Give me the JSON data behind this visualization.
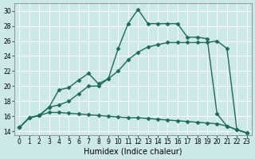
{
  "title": "",
  "xlabel": "Humidex (Indice chaleur)",
  "ylabel": "",
  "bg_color": "#cce8e8",
  "line_color": "#1a6b5a",
  "grid_color": "#ffffff",
  "xlim": [
    -0.5,
    23.5
  ],
  "ylim": [
    13.5,
    31
  ],
  "xticks": [
    0,
    1,
    2,
    3,
    4,
    5,
    6,
    7,
    8,
    9,
    10,
    11,
    12,
    13,
    14,
    15,
    16,
    17,
    18,
    19,
    20,
    21,
    22,
    23
  ],
  "yticks": [
    14,
    16,
    18,
    20,
    22,
    24,
    26,
    28,
    30
  ],
  "line1_x": [
    0,
    1,
    2,
    3,
    4,
    5,
    6,
    7,
    8,
    9,
    10,
    11,
    12,
    13,
    14,
    15,
    16,
    17,
    18,
    19,
    20,
    21,
    22,
    23
  ],
  "line1_y": [
    14.5,
    15.8,
    16.1,
    16.5,
    16.5,
    16.4,
    16.3,
    16.2,
    16.1,
    16.0,
    15.9,
    15.8,
    15.8,
    15.7,
    15.6,
    15.5,
    15.4,
    15.3,
    15.2,
    15.1,
    15.0,
    14.7,
    14.2,
    13.8
  ],
  "line2_x": [
    0,
    1,
    2,
    3,
    4,
    5,
    6,
    7,
    8,
    9,
    10,
    11,
    12,
    13,
    14,
    15,
    16,
    17,
    18,
    19,
    20,
    21,
    22,
    23
  ],
  "line2_y": [
    14.5,
    15.8,
    16.1,
    17.2,
    17.5,
    18.0,
    19.0,
    20.0,
    20.0,
    21.0,
    22.0,
    23.5,
    24.5,
    25.2,
    25.5,
    25.8,
    25.8,
    25.8,
    25.8,
    25.8,
    26.0,
    25.0,
    14.2,
    13.8
  ],
  "line3_x": [
    0,
    1,
    2,
    3,
    4,
    5,
    6,
    7,
    8,
    9,
    10,
    11,
    12,
    13,
    14,
    15,
    16,
    17,
    18,
    19,
    20,
    21,
    22,
    23
  ],
  "line3_y": [
    14.5,
    15.8,
    16.1,
    17.2,
    19.5,
    19.8,
    20.8,
    21.7,
    20.3,
    21.0,
    25.0,
    28.3,
    30.2,
    28.3,
    28.3,
    28.3,
    28.3,
    26.5,
    26.5,
    26.3,
    16.3,
    14.7,
    14.2,
    13.8
  ],
  "marker": "D",
  "markersize": 2.5,
  "linewidth": 1.0,
  "tick_fontsize": 5.5,
  "label_fontsize": 7
}
